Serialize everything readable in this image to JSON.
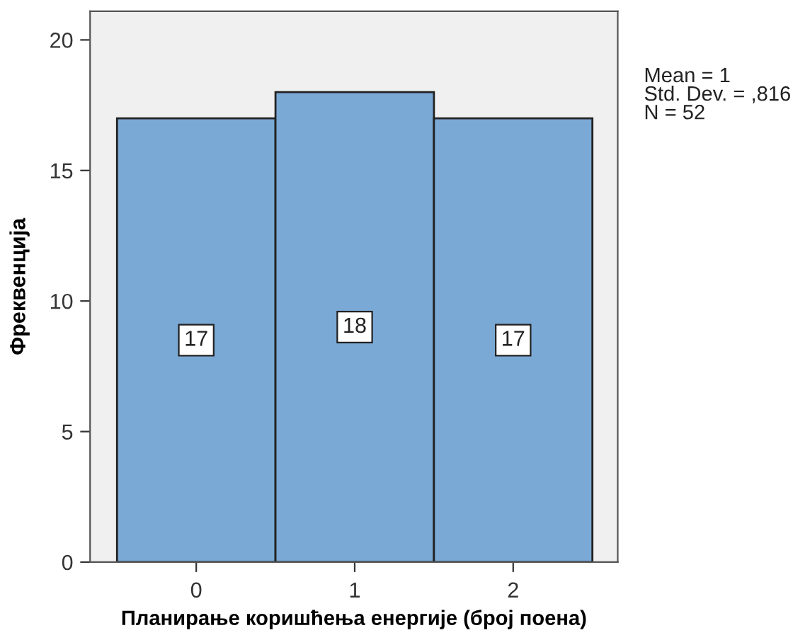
{
  "chart_data": {
    "type": "histogram",
    "xlabel": "Планирање коришћења енергије (број поена)",
    "ylabel": "Фреквенција",
    "bins": [
      -0.5,
      0.5,
      1.5,
      2.5
    ],
    "values": [
      17,
      18,
      17
    ],
    "color": "#7ba9d6",
    "data_labels": true,
    "xlim": [
      -0.67,
      2.66
    ],
    "xticks": [
      0,
      1,
      2
    ],
    "ylim": [
      0,
      21.1
    ],
    "yticks": [
      0,
      5,
      10,
      15,
      20
    ],
    "grid": false,
    "annotations": [
      "Mean = 1\nStd. Dev. = ,816\nN = 52"
    ]
  }
}
